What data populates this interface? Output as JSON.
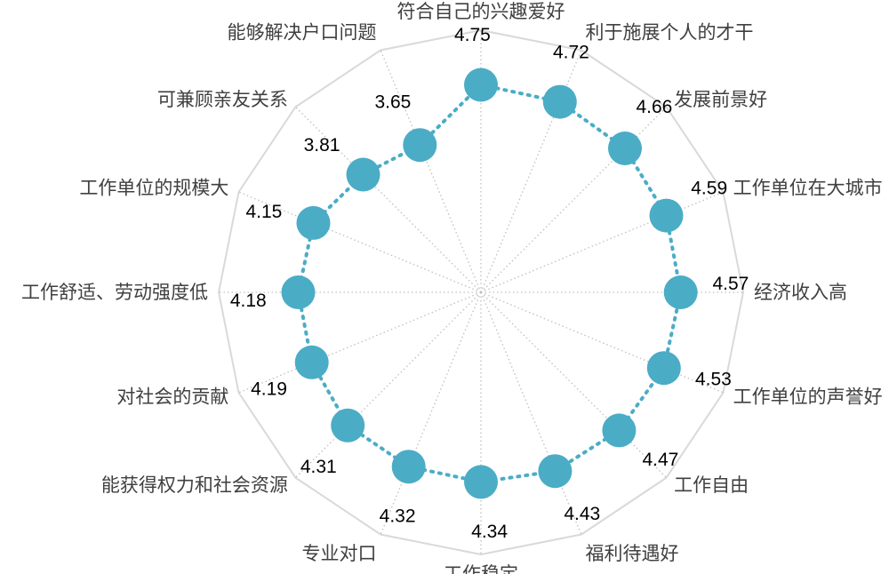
{
  "chart_data": {
    "type": "radar",
    "categories": [
      "符合自己的兴趣爱好",
      "利于施展个人的才干",
      "发展前景好",
      "工作单位在大城市",
      "经济收入高",
      "工作单位的声誉好",
      "工作自由",
      "福利待遇好",
      "工作稳定",
      "专业对口",
      "能获得权力和社会资源",
      "对社会的贡献",
      "工作舒适、劳动强度低",
      "工作单位的规模大",
      "可兼顾亲友关系",
      "能够解决户口问题"
    ],
    "series": [
      {
        "values": [
          4.75,
          4.72,
          4.66,
          4.59,
          4.57,
          4.53,
          4.47,
          4.43,
          4.34,
          4.32,
          4.31,
          4.19,
          4.18,
          4.15,
          3.81,
          3.65
        ]
      }
    ],
    "value_labels": [
      "4.75",
      "4.72",
      "4.66",
      "4.59",
      "4.57",
      "4.53",
      "4.47",
      "4.43",
      "4.34",
      "4.32",
      "4.31",
      "4.19",
      "4.18",
      "4.15",
      "3.81",
      "3.65"
    ],
    "axis_range": [
      0,
      6
    ],
    "gridlines": "outer ring only",
    "legend": "none",
    "colors": {
      "series": "#4bacc6",
      "spokes": "#bfbfbf",
      "outer_ring": "#d9d9d9",
      "category_text": "#404040",
      "value_text": "#000000"
    }
  }
}
